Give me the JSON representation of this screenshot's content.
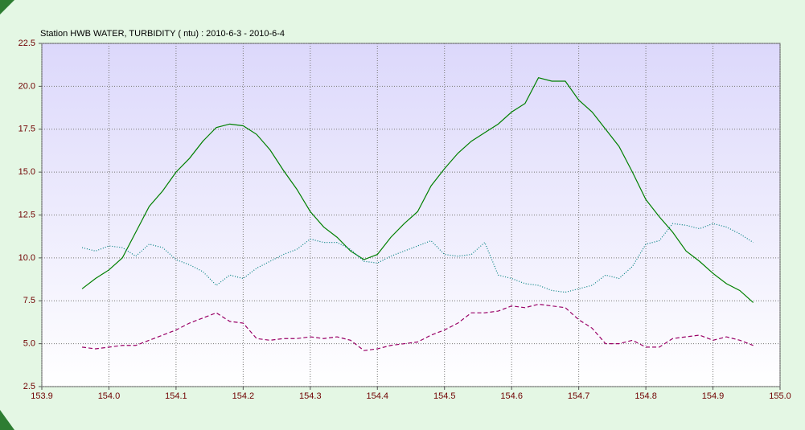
{
  "chart_data": {
    "type": "line",
    "title": "Station HWB WATER, TURBIDITY ( ntu) : 2010-6-3 - 2010-6-4",
    "x": [
      153.96,
      153.98,
      154.0,
      154.02,
      154.04,
      154.06,
      154.08,
      154.1,
      154.12,
      154.14,
      154.16,
      154.18,
      154.2,
      154.22,
      154.24,
      154.26,
      154.28,
      154.3,
      154.32,
      154.34,
      154.36,
      154.38,
      154.4,
      154.42,
      154.44,
      154.46,
      154.48,
      154.5,
      154.52,
      154.54,
      154.56,
      154.58,
      154.6,
      154.62,
      154.64,
      154.66,
      154.68,
      154.7,
      154.72,
      154.74,
      154.76,
      154.78,
      154.8,
      154.82,
      154.84,
      154.86,
      154.88,
      154.9,
      154.92,
      154.94,
      154.96
    ],
    "series": [
      {
        "color": "#008000",
        "style": "solid",
        "values": [
          8.2,
          8.8,
          9.3,
          10.0,
          11.5,
          13.0,
          13.9,
          15.0,
          15.8,
          16.8,
          17.6,
          17.8,
          17.7,
          17.2,
          16.3,
          15.1,
          14.0,
          12.7,
          11.8,
          11.2,
          10.4,
          9.9,
          10.2,
          11.2,
          12.0,
          12.7,
          14.2,
          15.2,
          16.1,
          16.8,
          17.3,
          17.8,
          18.5,
          19.0,
          20.5,
          20.3,
          20.3,
          19.2,
          18.5,
          17.5,
          16.5,
          15.0,
          13.4,
          12.4,
          11.5,
          10.4,
          9.8,
          9.1,
          8.5,
          8.1,
          7.4
        ]
      },
      {
        "color": "#008080",
        "style": "dotted",
        "values": [
          10.6,
          10.4,
          10.7,
          10.6,
          10.1,
          10.8,
          10.6,
          9.9,
          9.6,
          9.2,
          8.4,
          9.0,
          8.8,
          9.4,
          9.8,
          10.2,
          10.5,
          11.1,
          10.9,
          10.9,
          10.5,
          9.8,
          9.7,
          10.1,
          10.4,
          10.7,
          11.0,
          10.2,
          10.1,
          10.2,
          10.9,
          9.0,
          8.8,
          8.5,
          8.4,
          8.1,
          8.0,
          8.2,
          8.4,
          9.0,
          8.8,
          9.5,
          10.8,
          11.0,
          12.0,
          11.9,
          11.7,
          12.0,
          11.8,
          11.4,
          10.9
        ]
      },
      {
        "color": "#990066",
        "style": "dashed",
        "values": [
          4.8,
          4.7,
          4.8,
          4.9,
          4.9,
          5.2,
          5.5,
          5.8,
          6.2,
          6.5,
          6.8,
          6.3,
          6.2,
          5.3,
          5.2,
          5.3,
          5.3,
          5.4,
          5.3,
          5.4,
          5.2,
          4.6,
          4.7,
          4.9,
          5.0,
          5.1,
          5.5,
          5.8,
          6.2,
          6.8,
          6.8,
          6.9,
          7.2,
          7.1,
          7.3,
          7.2,
          7.1,
          6.4,
          5.9,
          5.0,
          5.0,
          5.2,
          4.8,
          4.8,
          5.3,
          5.4,
          5.5,
          5.2,
          5.4,
          5.2,
          4.9
        ]
      }
    ],
    "xlim": [
      153.9,
      155.0
    ],
    "xticks": [
      153.9,
      {
        "value": 154.0,
        "label": "154.0"
      },
      154.1,
      154.2,
      154.3,
      154.4,
      154.5,
      154.6,
      154.7,
      154.8,
      154.9,
      {
        "value": 155.0,
        "label": "155.0"
      }
    ],
    "ylim": [
      2.5,
      22.5
    ],
    "yticks": [
      2.5,
      {
        "value": 5.0,
        "label": "5.0"
      },
      7.5,
      {
        "value": 10.0,
        "label": "10.0"
      },
      12.5,
      {
        "value": 15.0,
        "label": "15.0"
      },
      17.5,
      {
        "value": 20.0,
        "label": "20.0"
      },
      22.5
    ],
    "grid": true
  }
}
